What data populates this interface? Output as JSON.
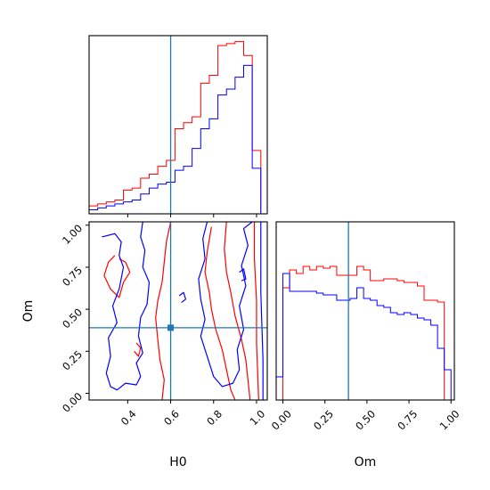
{
  "chart_data": {
    "type": "corner",
    "colors": {
      "red": "#ff0000",
      "blue": "#0000ff",
      "truth": "#1f77b4"
    },
    "truths": {
      "H0": 0.6,
      "Om": 0.39
    },
    "panels": [
      {
        "id": "hist-H0",
        "type": "histogram",
        "xlim": [
          0.22,
          1.05
        ],
        "bin_edges": [
          0.22,
          0.26,
          0.3,
          0.34,
          0.38,
          0.42,
          0.46,
          0.5,
          0.54,
          0.58,
          0.62,
          0.66,
          0.7,
          0.74,
          0.78,
          0.82,
          0.86,
          0.9,
          0.94,
          0.98,
          1.02
        ],
        "series": [
          {
            "color": "red",
            "counts": [
              4,
              5,
              6,
              7,
              12,
              13,
              18,
              20,
              24,
              27,
              43,
              46,
              49,
              66,
              70,
              85,
              86,
              87,
              80,
              32
            ]
          },
          {
            "color": "blue",
            "counts": [
              2,
              3,
              4,
              5,
              6,
              7,
              10,
              13,
              15,
              16,
              22,
              24,
              33,
              43,
              48,
              60,
              63,
              69,
              75,
              23
            ]
          }
        ],
        "ylim": [
          0,
          90
        ]
      },
      {
        "id": "hist-Om",
        "type": "histogram",
        "xlim": [
          -0.04,
          1.02
        ],
        "xlabel": "Om",
        "xticks": [
          "0.00",
          "0.25",
          "0.50",
          "0.75",
          "1.00"
        ],
        "bin_edges": [
          -0.04,
          0.0,
          0.04,
          0.08,
          0.12,
          0.16,
          0.2,
          0.24,
          0.28,
          0.32,
          0.36,
          0.4,
          0.44,
          0.48,
          0.52,
          0.56,
          0.6,
          0.64,
          0.68,
          0.72,
          0.76,
          0.8,
          0.84,
          0.88,
          0.92,
          0.96,
          1.0
        ],
        "series": [
          {
            "color": "red",
            "counts": [
              0,
              63,
              73,
              71,
              75,
              73,
              75,
              74,
              75,
              70,
              70,
              70,
              75,
              73,
              67,
              67,
              68,
              68,
              67,
              66,
              66,
              64,
              56,
              56,
              55,
              0
            ]
          },
          {
            "color": "blue",
            "counts": [
              13,
              71,
              61,
              61,
              61,
              61,
              60,
              59,
              59,
              56,
              56,
              57,
              63,
              57,
              56,
              53,
              52,
              49,
              48,
              49,
              48,
              46,
              45,
              42,
              29,
              17
            ]
          }
        ],
        "ylim": [
          0,
          100
        ]
      },
      {
        "id": "contour-H0-Om",
        "type": "contour",
        "xlim": [
          0.22,
          1.05
        ],
        "ylim": [
          -0.04,
          1.02
        ],
        "xlabel": "H0",
        "ylabel": "Om",
        "xticks": [
          "0.4",
          "0.6",
          "0.8",
          "1.0"
        ],
        "yticks": [
          "0.00",
          "0.25",
          "0.50",
          "0.75",
          "1.00"
        ],
        "series": [
          {
            "color": "red",
            "contours": [
              [
                [
                  0.6,
                  1.02
                ],
                [
                  0.58,
                  0.9
                ],
                [
                  0.57,
                  0.78
                ],
                [
                  0.56,
                  0.66
                ],
                [
                  0.54,
                  0.55
                ],
                [
                  0.53,
                  0.45
                ],
                [
                  0.54,
                  0.32
                ],
                [
                  0.55,
                  0.2
                ],
                [
                  0.57,
                  0.08
                ],
                [
                  0.56,
                  -0.04
                ]
              ],
              [
                [
                  0.34,
                  0.82
                ],
                [
                  0.31,
                  0.78
                ],
                [
                  0.29,
                  0.7
                ],
                [
                  0.32,
                  0.62
                ],
                [
                  0.36,
                  0.57
                ],
                [
                  0.38,
                  0.66
                ],
                [
                  0.41,
                  0.72
                ],
                [
                  0.39,
                  0.78
                ],
                [
                  0.36,
                  0.8
                ]
              ],
              [
                [
                  0.79,
                  0.99
                ],
                [
                  0.77,
                  0.84
                ],
                [
                  0.76,
                  0.72
                ],
                [
                  0.78,
                  0.6
                ],
                [
                  0.79,
                  0.5
                ],
                [
                  0.81,
                  0.38
                ],
                [
                  0.84,
                  0.26
                ],
                [
                  0.86,
                  0.14
                ],
                [
                  0.88,
                  0.02
                ],
                [
                  0.9,
                  -0.04
                ]
              ],
              [
                [
                  0.86,
                  1.02
                ],
                [
                  0.85,
                  0.86
                ],
                [
                  0.86,
                  0.72
                ],
                [
                  0.88,
                  0.6
                ],
                [
                  0.9,
                  0.46
                ],
                [
                  0.93,
                  0.32
                ],
                [
                  0.95,
                  0.2
                ],
                [
                  0.96,
                  0.08
                ],
                [
                  0.97,
                  -0.04
                ]
              ],
              [
                [
                  0.99,
                  1.02
                ],
                [
                  0.99,
                  0.8
                ],
                [
                  1.0,
                  0.55
                ],
                [
                  1.0,
                  0.3
                ],
                [
                  1.01,
                  -0.04
                ]
              ],
              [
                [
                  0.44,
                  0.3
                ],
                [
                  0.46,
                  0.27
                ],
                [
                  0.45,
                  0.22
                ],
                [
                  0.43,
                  0.25
                ]
              ]
            ]
          },
          {
            "color": "blue",
            "contours": [
              [
                [
                  0.28,
                  0.93
                ],
                [
                  0.34,
                  0.95
                ],
                [
                  0.37,
                  0.9
                ],
                [
                  0.36,
                  0.82
                ],
                [
                  0.38,
                  0.75
                ],
                [
                  0.36,
                  0.62
                ],
                [
                  0.33,
                  0.52
                ],
                [
                  0.35,
                  0.42
                ],
                [
                  0.31,
                  0.33
                ],
                [
                  0.32,
                  0.22
                ],
                [
                  0.3,
                  0.12
                ],
                [
                  0.32,
                  0.04
                ],
                [
                  0.35,
                  0.02
                ],
                [
                  0.39,
                  0.06
                ],
                [
                  0.44,
                  0.05
                ],
                [
                  0.46,
                  0.1
                ],
                [
                  0.44,
                  0.18
                ],
                [
                  0.47,
                  0.24
                ],
                [
                  0.45,
                  0.34
                ],
                [
                  0.46,
                  0.45
                ],
                [
                  0.49,
                  0.53
                ],
                [
                  0.5,
                  0.66
                ],
                [
                  0.47,
                  0.75
                ],
                [
                  0.48,
                  0.85
                ],
                [
                  0.46,
                  0.93
                ],
                [
                  0.47,
                  1.02
                ]
              ],
              [
                [
                  0.77,
                  1.02
                ],
                [
                  0.75,
                  0.92
                ],
                [
                  0.76,
                  0.8
                ],
                [
                  0.73,
                  0.68
                ],
                [
                  0.74,
                  0.56
                ],
                [
                  0.76,
                  0.44
                ],
                [
                  0.74,
                  0.34
                ],
                [
                  0.77,
                  0.22
                ],
                [
                  0.8,
                  0.1
                ],
                [
                  0.84,
                  0.04
                ],
                [
                  0.89,
                  0.06
                ],
                [
                  0.92,
                  0.14
                ],
                [
                  0.91,
                  0.26
                ],
                [
                  0.94,
                  0.38
                ],
                [
                  0.92,
                  0.52
                ],
                [
                  0.95,
                  0.64
                ],
                [
                  0.93,
                  0.76
                ],
                [
                  0.96,
                  0.88
                ],
                [
                  0.94,
                  0.98
                ],
                [
                  0.98,
                  1.02
                ]
              ],
              [
                [
                  1.02,
                  1.02
                ],
                [
                  1.02,
                  0.6
                ],
                [
                  1.03,
                  0.2
                ],
                [
                  1.03,
                  -0.04
                ]
              ],
              [
                [
                  0.64,
                  0.58
                ],
                [
                  0.66,
                  0.6
                ],
                [
                  0.67,
                  0.56
                ],
                [
                  0.65,
                  0.54
                ]
              ],
              [
                [
                  0.92,
                  0.72
                ],
                [
                  0.94,
                  0.74
                ],
                [
                  0.95,
                  0.68
                ],
                [
                  0.93,
                  0.67
                ]
              ]
            ]
          }
        ]
      }
    ]
  }
}
